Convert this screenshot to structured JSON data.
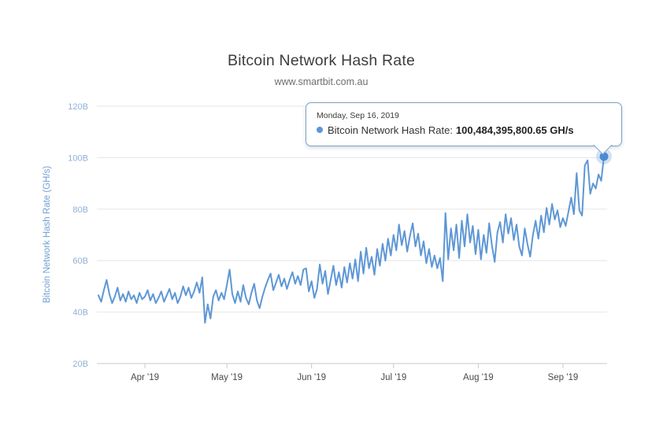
{
  "chart_data": {
    "type": "line",
    "title": "Bitcoin Network Hash Rate",
    "subtitle": "www.smartbit.com.au",
    "ylabel": "Bitcoin Network Hash Rate (GH/s)",
    "xlabel": "",
    "series_name": "Bitcoin Network Hash Rate",
    "unit": "GH/s",
    "values_unit_note": "billions of GH/s, daily",
    "x_start_date": "2019-03-15",
    "x_end_date": "2019-09-16",
    "ylim": [
      20,
      120
    ],
    "grid": true,
    "legend": "none",
    "x_ticks": [
      {
        "label": "Apr '19",
        "day_index": 17
      },
      {
        "label": "May '19",
        "day_index": 47
      },
      {
        "label": "Jun '19",
        "day_index": 78
      },
      {
        "label": "Jul '19",
        "day_index": 108
      },
      {
        "label": "Aug '19",
        "day_index": 139
      },
      {
        "label": "Sep '19",
        "day_index": 170
      }
    ],
    "y_ticks": [
      {
        "label": "20B",
        "value": 20
      },
      {
        "label": "40B",
        "value": 40
      },
      {
        "label": "60B",
        "value": 60
      },
      {
        "label": "80B",
        "value": 80
      },
      {
        "label": "100B",
        "value": 100
      },
      {
        "label": "120B",
        "value": 120
      }
    ],
    "values_b_ghs": [
      46.5,
      44.0,
      48.5,
      52.5,
      47.0,
      43.5,
      46.0,
      49.5,
      44.5,
      47.0,
      44.0,
      48.0,
      45.0,
      46.5,
      43.5,
      47.5,
      45.0,
      46.0,
      48.5,
      44.5,
      47.0,
      43.5,
      45.5,
      48.0,
      44.0,
      46.5,
      49.0,
      45.0,
      47.5,
      43.5,
      46.0,
      50.0,
      46.5,
      49.5,
      45.5,
      48.0,
      51.5,
      47.5,
      53.5,
      35.8,
      43.0,
      37.5,
      46.0,
      48.5,
      44.5,
      47.5,
      45.0,
      50.5,
      56.5,
      47.0,
      43.5,
      48.0,
      44.0,
      50.5,
      45.5,
      43.0,
      47.5,
      51.0,
      44.5,
      41.5,
      46.0,
      49.5,
      52.5,
      55.0,
      48.5,
      51.5,
      54.5,
      50.0,
      53.0,
      49.0,
      52.5,
      55.5,
      51.0,
      54.0,
      50.5,
      56.5,
      57.0,
      48.0,
      52.0,
      45.5,
      49.0,
      58.5,
      51.0,
      56.0,
      47.0,
      52.5,
      58.0,
      50.5,
      55.5,
      49.5,
      57.5,
      51.5,
      59.0,
      53.0,
      60.5,
      52.0,
      63.5,
      55.0,
      65.0,
      57.0,
      61.5,
      54.5,
      64.5,
      58.0,
      66.5,
      60.0,
      68.5,
      62.0,
      70.0,
      64.0,
      74.0,
      66.0,
      71.5,
      63.5,
      69.5,
      74.5,
      65.5,
      70.5,
      62.0,
      67.5,
      59.0,
      64.5,
      57.5,
      62.0,
      57.0,
      61.0,
      52.0,
      78.5,
      60.5,
      72.5,
      64.0,
      74.0,
      61.0,
      75.5,
      65.5,
      78.0,
      67.0,
      73.5,
      62.5,
      72.0,
      60.5,
      70.0,
      63.0,
      74.5,
      66.0,
      59.5,
      71.0,
      75.0,
      67.0,
      78.0,
      70.5,
      76.5,
      68.0,
      74.0,
      65.5,
      62.0,
      72.5,
      66.5,
      61.5,
      70.0,
      75.5,
      68.5,
      77.5,
      71.0,
      80.5,
      74.0,
      82.0,
      76.0,
      79.5,
      73.0,
      76.5,
      73.5,
      79.0,
      84.5,
      78.0,
      94.0,
      79.5,
      77.5,
      97.0,
      99.0,
      86.0,
      90.0,
      88.0,
      93.5,
      91.0,
      100.48
    ],
    "selected_point": {
      "date": "2019-09-16",
      "value_b_ghs": 100.48,
      "value_display": "100,484,395,800.65 GH/s"
    },
    "colors": {
      "line": "#5e97d5",
      "marker": "#4a8bd4",
      "marker_halo": "rgba(94,151,213,0.28)",
      "grid": "#e6e6e6",
      "axis": "#c9c9c9",
      "y_label": "#8fb0d6",
      "y_title": "#6f9fd0",
      "x_label": "#4b4b4b",
      "tooltip_border": "#7f9fc6"
    }
  },
  "tooltip": {
    "date": "Monday, Sep 16, 2019",
    "series_label": "Bitcoin Network Hash Rate:",
    "value": "100,484,395,800.65 GH/s"
  }
}
